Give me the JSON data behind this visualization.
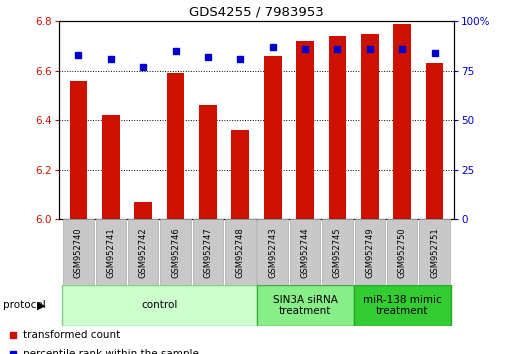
{
  "title": "GDS4255 / 7983953",
  "samples": [
    "GSM952740",
    "GSM952741",
    "GSM952742",
    "GSM952746",
    "GSM952747",
    "GSM952748",
    "GSM952743",
    "GSM952744",
    "GSM952745",
    "GSM952749",
    "GSM952750",
    "GSM952751"
  ],
  "transformed_counts": [
    6.56,
    6.42,
    6.07,
    6.59,
    6.46,
    6.36,
    6.66,
    6.72,
    6.74,
    6.75,
    6.79,
    6.63
  ],
  "percentile_ranks": [
    83,
    81,
    77,
    85,
    82,
    81,
    87,
    86,
    86,
    86,
    86,
    84
  ],
  "ylim_left": [
    6.0,
    6.8
  ],
  "ylim_right": [
    0,
    100
  ],
  "yticks_left": [
    6.0,
    6.2,
    6.4,
    6.6,
    6.8
  ],
  "yticks_right": [
    0,
    25,
    50,
    75,
    100
  ],
  "bar_color": "#cc1100",
  "dot_color": "#0000cc",
  "groups": [
    {
      "label": "control",
      "start": 0,
      "end": 6,
      "color": "#ccffcc",
      "edge_color": "#88cc88"
    },
    {
      "label": "SIN3A siRNA\ntreatment",
      "start": 6,
      "end": 9,
      "color": "#88ee88",
      "edge_color": "#44aa44"
    },
    {
      "label": "miR-138 mimic\ntreatment",
      "start": 9,
      "end": 12,
      "color": "#33cc33",
      "edge_color": "#22aa22"
    }
  ],
  "protocol_label": "protocol",
  "legend_items": [
    {
      "label": "transformed count",
      "color": "#cc1100"
    },
    {
      "label": "percentile rank within the sample",
      "color": "#0000cc"
    }
  ],
  "bar_width": 0.55,
  "base_value": 6.0,
  "sample_box_color": "#c8c8c8",
  "sample_box_edge": "#aaaaaa"
}
